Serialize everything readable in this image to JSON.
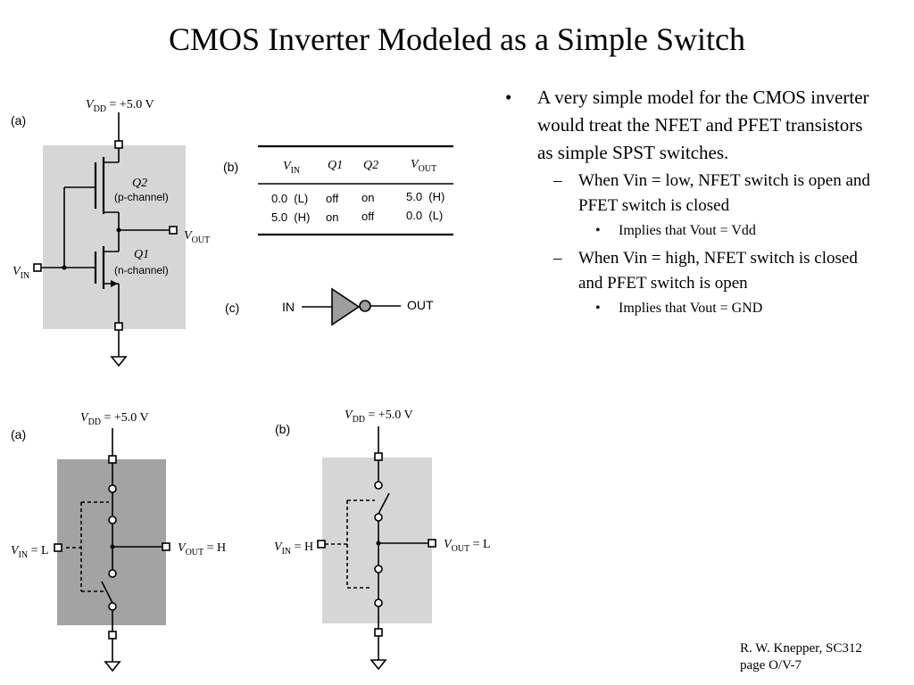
{
  "slide": {
    "title": "CMOS Inverter Modeled as a Simple Switch",
    "bullets": [
      {
        "text": "A very simple model for the CMOS inverter would treat the NFET and PFET transistors as simple SPST switches.",
        "sub": [
          {
            "text": "When Vin = low, NFET switch is open and PFET switch is closed",
            "sub": [
              "Implies that Vout = Vdd"
            ]
          },
          {
            "text": "When Vin = high, NFET switch is closed and PFET switch is open",
            "sub": [
              "Implies that Vout = GND"
            ]
          }
        ]
      }
    ],
    "footer": {
      "line1": "R. W. Knepper, SC312",
      "line2": "page O/V-7"
    }
  },
  "figure_top": {
    "panel_a": {
      "label": "(a)",
      "vdd": {
        "v": "V",
        "sub": "DD",
        "rest": " = +5.0 V"
      },
      "q2_name": "Q2",
      "q2_type": "(p-channel)",
      "q1_name": "Q1",
      "q1_type": "(n-channel)",
      "vin": {
        "v": "V",
        "sub": "IN"
      },
      "vout": {
        "v": "V",
        "sub": "OUT"
      }
    },
    "panel_b": {
      "label": "(b)",
      "headers": [
        {
          "v": "V",
          "sub": "IN"
        },
        {
          "v": "Q1",
          "sub": ""
        },
        {
          "v": "Q2",
          "sub": ""
        },
        {
          "v": "V",
          "sub": "OUT"
        }
      ],
      "rows": [
        [
          "0.0  (L)",
          "off",
          "on",
          "5.0  (H)"
        ],
        [
          "5.0  (H)",
          "on",
          "off",
          "0.0  (L)"
        ]
      ]
    },
    "panel_c": {
      "label": "(c)",
      "in_label": "IN",
      "out_label": "OUT"
    }
  },
  "figure_bottom": {
    "panel_a": {
      "label": "(a)",
      "vdd": {
        "v": "V",
        "sub": "DD",
        "rest": " = +5.0 V"
      },
      "vin": {
        "v": "V",
        "sub": "IN",
        "rest": " = L"
      },
      "vout": {
        "v": "V",
        "sub": "OUT",
        "rest": " = H"
      }
    },
    "panel_b": {
      "label": "(b)",
      "vdd": {
        "v": "V",
        "sub": "DD",
        "rest": " = +5.0 V"
      },
      "vin": {
        "v": "V",
        "sub": "IN",
        "rest": " = H"
      },
      "vout": {
        "v": "V",
        "sub": "OUT",
        "rest": " = L"
      }
    }
  },
  "colors": {
    "shade_light": "#d6d6d6",
    "shade_dark": "#a3a3a3",
    "inverter_fill": "#9e9e9e"
  }
}
